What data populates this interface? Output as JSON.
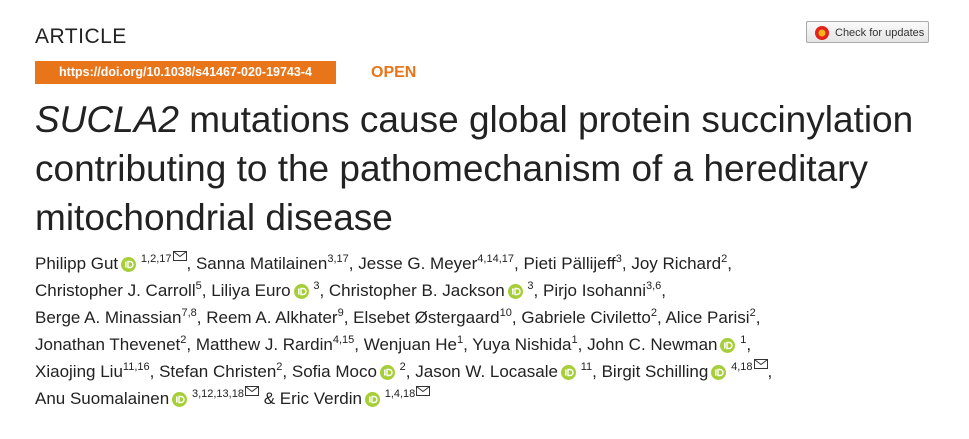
{
  "header": {
    "label": "ARTICLE",
    "doi": "https://doi.org/10.1038/s41467-020-19743-4",
    "access": "OPEN",
    "updates_button": "Check for updates"
  },
  "title": {
    "gene": "SUCLA2",
    "rest": "mutations cause global protein succinylation contributing to the pathomechanism of a hereditary mitochondrial disease"
  },
  "separator": ",",
  "connector": "&",
  "authors": [
    {
      "name": "Philipp Gut",
      "orcid": true,
      "affiliations": "1,2,17",
      "email": true
    },
    {
      "name": "Sanna Matilainen",
      "orcid": false,
      "affiliations": "3,17",
      "email": false
    },
    {
      "name": "Jesse G. Meyer",
      "orcid": false,
      "affiliations": "4,14,17",
      "email": false
    },
    {
      "name": "Pieti Pällijeff",
      "orcid": false,
      "affiliations": "3",
      "email": false
    },
    {
      "name": "Joy Richard",
      "orcid": false,
      "affiliations": "2",
      "email": false
    },
    {
      "name": "Christopher J. Carroll",
      "orcid": false,
      "affiliations": "5",
      "email": false
    },
    {
      "name": "Liliya Euro",
      "orcid": true,
      "affiliations": "3",
      "email": false
    },
    {
      "name": "Christopher B. Jackson",
      "orcid": true,
      "affiliations": "3",
      "email": false
    },
    {
      "name": "Pirjo Isohanni",
      "orcid": false,
      "affiliations": "3,6",
      "email": false
    },
    {
      "name": "Berge A. Minassian",
      "orcid": false,
      "affiliations": "7,8",
      "email": false
    },
    {
      "name": "Reem A. Alkhater",
      "orcid": false,
      "affiliations": "9",
      "email": false
    },
    {
      "name": "Elsebet Østergaard",
      "orcid": false,
      "affiliations": "10",
      "email": false
    },
    {
      "name": "Gabriele Civiletto",
      "orcid": false,
      "affiliations": "2",
      "email": false
    },
    {
      "name": "Alice Parisi",
      "orcid": false,
      "affiliations": "2",
      "email": false
    },
    {
      "name": "Jonathan Thevenet",
      "orcid": false,
      "affiliations": "2",
      "email": false
    },
    {
      "name": "Matthew J. Rardin",
      "orcid": false,
      "affiliations": "4,15",
      "email": false
    },
    {
      "name": "Wenjuan He",
      "orcid": false,
      "affiliations": "1",
      "email": false
    },
    {
      "name": "Yuya Nishida",
      "orcid": false,
      "affiliations": "1",
      "email": false
    },
    {
      "name": "John C. Newman",
      "orcid": true,
      "affiliations": "1",
      "email": false
    },
    {
      "name": "Xiaojing Liu",
      "orcid": false,
      "affiliations": "11,16",
      "email": false
    },
    {
      "name": "Stefan Christen",
      "orcid": false,
      "affiliations": "2",
      "email": false
    },
    {
      "name": "Sofia Moco",
      "orcid": true,
      "affiliations": "2",
      "email": false
    },
    {
      "name": "Jason W. Locasale",
      "orcid": true,
      "affiliations": "11",
      "email": false
    },
    {
      "name": "Birgit Schilling",
      "orcid": true,
      "affiliations": "4,18",
      "email": true
    },
    {
      "name": "Anu Suomalainen",
      "orcid": true,
      "affiliations": "3,12,13,18",
      "email": true
    },
    {
      "name": "Eric Verdin",
      "orcid": true,
      "affiliations": "1,4,18",
      "email": true
    }
  ]
}
